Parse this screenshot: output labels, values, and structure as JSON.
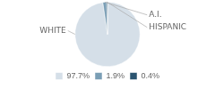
{
  "chart_data": {
    "type": "pie",
    "categories": [
      "97.7%",
      "1.9%",
      "0.4%"
    ],
    "values": [
      97.7,
      1.9,
      0.4
    ],
    "colors": [
      "#d5dfe8",
      "#7a9eb5",
      "#2b5470"
    ],
    "legend": "bottom",
    "annotations": [
      {
        "text": "WHITE"
      },
      {
        "text": "A.I."
      },
      {
        "text": "HISPANIC"
      }
    ]
  }
}
